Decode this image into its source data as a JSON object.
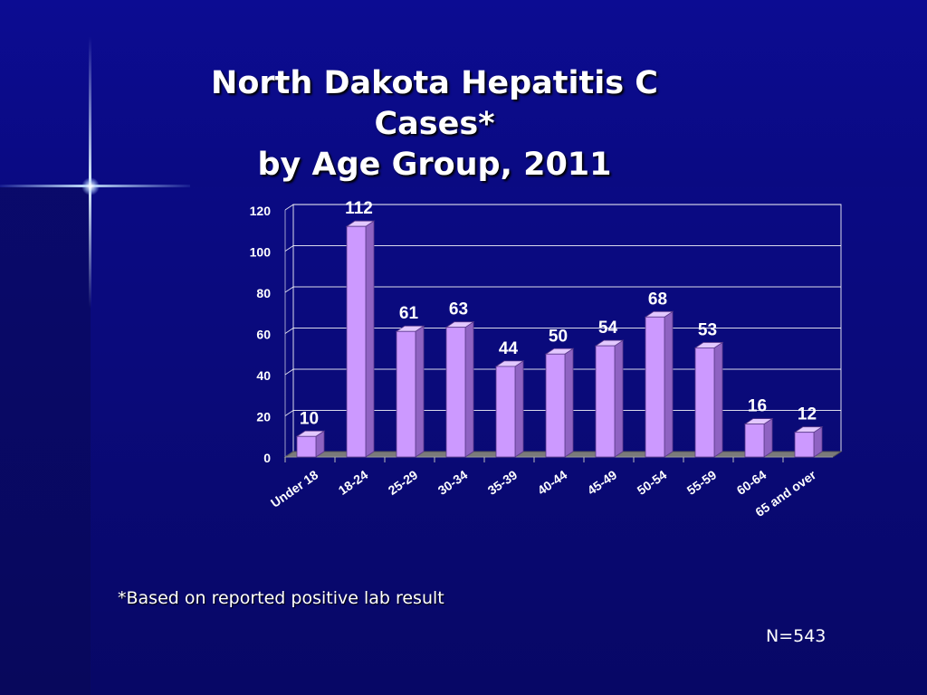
{
  "title_line1": "North Dakota Hepatitis C Cases*",
  "title_line2": "by Age Group, 2011",
  "footnote": "*Based on reported positive lab result",
  "n_label": "N=543",
  "colors": {
    "bar_front": "#cc99ff",
    "bar_side": "#8f63c2",
    "bar_top": "#e3c8ff",
    "grid": "#ffffff",
    "floor": "#7a7a7a"
  },
  "chart_data": {
    "type": "bar",
    "title": "North Dakota Hepatitis C Cases* by Age Group, 2011",
    "xlabel": "",
    "ylabel": "",
    "ylim": [
      0,
      120
    ],
    "yticks": [
      0,
      20,
      40,
      60,
      80,
      100,
      120
    ],
    "grid": true,
    "categories": [
      "Under 18",
      "18-24",
      "25-29",
      "30-34",
      "35-39",
      "40-44",
      "45-49",
      "50-54",
      "55-59",
      "60-64",
      "65 and over"
    ],
    "values": [
      10,
      112,
      61,
      63,
      44,
      50,
      54,
      68,
      53,
      16,
      12
    ]
  }
}
